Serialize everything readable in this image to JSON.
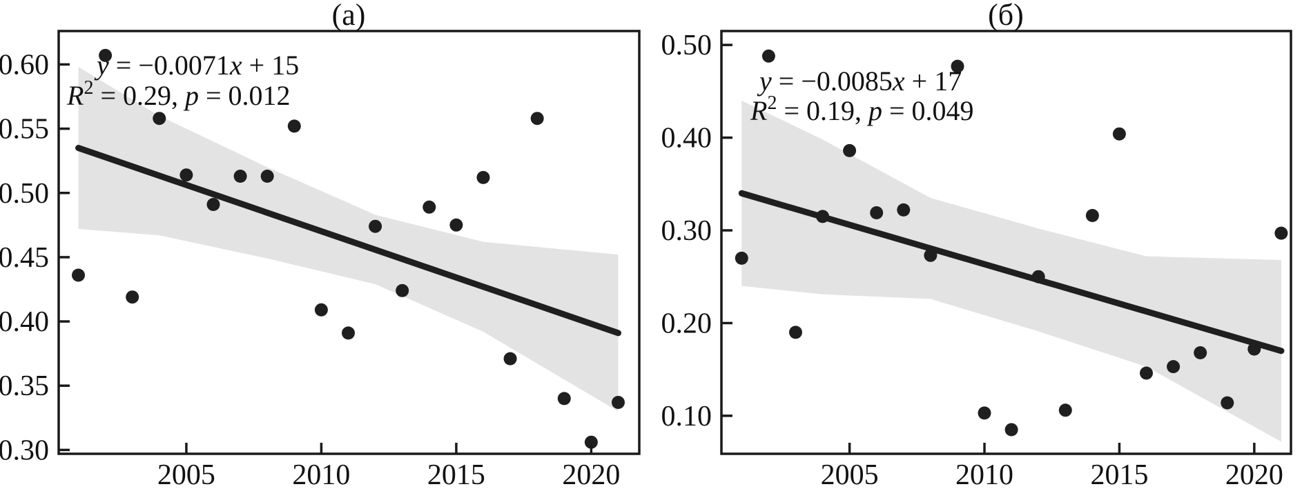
{
  "colors": {
    "marker": "#1f1f1f",
    "trend_line": "#1f1f1f",
    "band": "#e3e3e3",
    "axis": "#1a1a1a",
    "text": "#111111",
    "background": "#ffffff"
  },
  "chart_data": [
    {
      "type": "scatter",
      "panel_label": "(а)",
      "equation": "y = −0.0071x + 15",
      "stats": "R² = 0.29, p = 0.012",
      "annotation": {
        "line1": [
          {
            "text": "y",
            "italic": true
          },
          {
            "text": " = −0.0071"
          },
          {
            "text": "x",
            "italic": true
          },
          {
            "text": " + 15"
          }
        ],
        "line2": [
          {
            "text": "R",
            "italic": true
          },
          {
            "text": "2",
            "sup": true
          },
          {
            "text": " = 0.29, "
          },
          {
            "text": "p",
            "italic": true
          },
          {
            "text": " = 0.012"
          }
        ]
      },
      "xlim": [
        2000.27,
        2021.78
      ],
      "ylim": [
        0.297,
        0.626
      ],
      "xtick_values": [
        2005,
        2010,
        2015,
        2020
      ],
      "xticks": [
        "2005",
        "2010",
        "2015",
        "2020"
      ],
      "ytick_values": [
        0.3,
        0.35,
        0.4,
        0.45,
        0.5,
        0.55,
        0.6
      ],
      "yticks": [
        "0.30",
        "0.35",
        "0.40",
        "0.45",
        "0.50",
        "0.55",
        "0.60"
      ],
      "points": {
        "x": [
          2001,
          2002,
          2003,
          2004,
          2005,
          2006,
          2007,
          2008,
          2009,
          2010,
          2011,
          2012,
          2013,
          2014,
          2015,
          2016,
          2017,
          2018,
          2019,
          2020,
          2021
        ],
        "y": [
          0.436,
          0.607,
          0.419,
          0.558,
          0.514,
          0.491,
          0.513,
          0.513,
          0.552,
          0.409,
          0.391,
          0.474,
          0.424,
          0.489,
          0.475,
          0.512,
          0.371,
          0.558,
          0.34,
          0.306,
          0.337
        ]
      },
      "trend": {
        "x": [
          2001,
          2021
        ],
        "y": [
          0.535,
          0.391
        ]
      },
      "band": {
        "x": [
          2001,
          2004,
          2008,
          2012,
          2016,
          2021
        ],
        "upper": [
          0.598,
          0.56,
          0.52,
          0.483,
          0.462,
          0.452
        ],
        "lower": [
          0.472,
          0.467,
          0.449,
          0.429,
          0.392,
          0.33
        ]
      }
    },
    {
      "type": "scatter",
      "panel_label": "(б)",
      "equation": "y = −0.0085x + 17",
      "stats": "R² = 0.19, p = 0.049",
      "annotation": {
        "line1": [
          {
            "text": "y",
            "italic": true
          },
          {
            "text": " = −0.0085"
          },
          {
            "text": "x",
            "italic": true
          },
          {
            "text": " + 17"
          }
        ],
        "line2": [
          {
            "text": "R",
            "italic": true
          },
          {
            "text": "2",
            "sup": true
          },
          {
            "text": " = 0.19, "
          },
          {
            "text": "p",
            "italic": true
          },
          {
            "text": " = 0.049"
          }
        ]
      },
      "xlim": [
        2000.25,
        2021.36
      ],
      "ylim": [
        0.059,
        0.515
      ],
      "xtick_values": [
        2005,
        2010,
        2015,
        2020
      ],
      "xticks": [
        "2005",
        "2010",
        "2015",
        "2020"
      ],
      "ytick_values": [
        0.1,
        0.2,
        0.3,
        0.4,
        0.5
      ],
      "yticks": [
        "0.10",
        "0.20",
        "0.30",
        "0.40",
        "0.50"
      ],
      "points": {
        "x": [
          2001,
          2002,
          2003,
          2004,
          2005,
          2006,
          2007,
          2008,
          2009,
          2010,
          2011,
          2012,
          2013,
          2014,
          2015,
          2016,
          2017,
          2018,
          2019,
          2020,
          2021
        ],
        "y": [
          0.27,
          0.488,
          0.19,
          0.315,
          0.386,
          0.319,
          0.322,
          0.273,
          0.477,
          0.103,
          0.085,
          0.25,
          0.106,
          0.316,
          0.404,
          0.146,
          0.153,
          0.168,
          0.114,
          0.172,
          0.297
        ]
      },
      "trend": {
        "x": [
          2001,
          2021
        ],
        "y": [
          0.34,
          0.17
        ]
      },
      "band": {
        "x": [
          2001,
          2004,
          2008,
          2012,
          2016,
          2021
        ],
        "upper": [
          0.44,
          0.398,
          0.335,
          0.302,
          0.272,
          0.268
        ],
        "lower": [
          0.24,
          0.231,
          0.226,
          0.191,
          0.153,
          0.072
        ]
      }
    }
  ]
}
